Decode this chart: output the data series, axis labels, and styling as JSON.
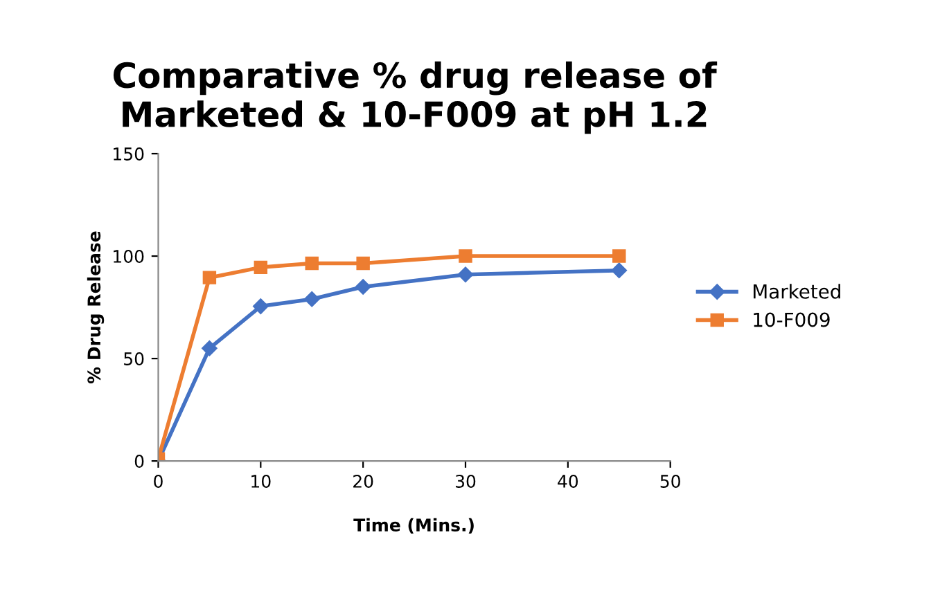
{
  "chart_data": {
    "type": "line",
    "title": "Comparative % drug release of\nMarketed & 10-F009 at pH 1.2",
    "xlabel": "Time (Mins.)",
    "ylabel": "% Drug Release",
    "x": [
      0,
      5,
      10,
      15,
      20,
      30,
      45
    ],
    "series": [
      {
        "name": "Marketed",
        "color": "#4472c4",
        "marker": "diamond",
        "values": [
          0,
          55,
          75.5,
          79,
          85,
          91,
          93
        ]
      },
      {
        "name": "10-F009",
        "color": "#ed7d31",
        "marker": "square",
        "values": [
          1,
          89.5,
          94.5,
          96.5,
          96.5,
          100,
          100
        ]
      }
    ],
    "xlim": [
      0,
      50
    ],
    "xticks": [
      0,
      10,
      20,
      30,
      40,
      50
    ],
    "ylim": [
      0,
      150
    ],
    "yticks": [
      0,
      50,
      100,
      150
    ],
    "grid": false,
    "legend": "right",
    "line_style": "solid"
  }
}
